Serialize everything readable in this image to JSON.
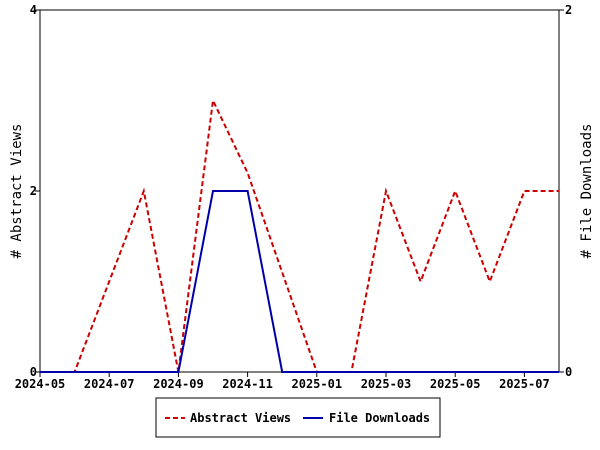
{
  "chart_data": {
    "type": "line",
    "title": "",
    "x": [
      "2024-05",
      "2024-06",
      "2024-07",
      "2024-08",
      "2024-09",
      "2024-10",
      "2024-11",
      "2024-12",
      "2025-01",
      "2025-02",
      "2025-03",
      "2025-04",
      "2025-05",
      "2025-06",
      "2025-07",
      "2025-08"
    ],
    "x_tick_labels": [
      "2024-05",
      "2024-07",
      "2024-09",
      "2024-11",
      "2025-01",
      "2025-03",
      "2025-05",
      "2025-07"
    ],
    "left_axis": {
      "label": "# Abstract Views",
      "ylim": [
        0,
        4
      ],
      "ticks": [
        "0",
        "2",
        "4"
      ]
    },
    "right_axis": {
      "label": "# File Downloads",
      "ylim": [
        0,
        2
      ],
      "ticks": [
        "0",
        "2"
      ]
    },
    "series": [
      {
        "name": "Abstract Views",
        "axis": "left",
        "color": "#cc0000",
        "style": "dashed",
        "values": [
          0,
          0,
          1,
          2,
          0,
          3,
          2.2,
          1.1,
          0,
          0,
          2,
          1,
          2,
          1,
          2,
          2
        ]
      },
      {
        "name": "File Downloads",
        "axis": "right",
        "color": "#0000aa",
        "style": "solid",
        "values": [
          0,
          0,
          0,
          0,
          0,
          1,
          1,
          0,
          0,
          0,
          0,
          0,
          0,
          0,
          0,
          0
        ]
      }
    ],
    "grid": false,
    "legend_position": "bottom"
  }
}
